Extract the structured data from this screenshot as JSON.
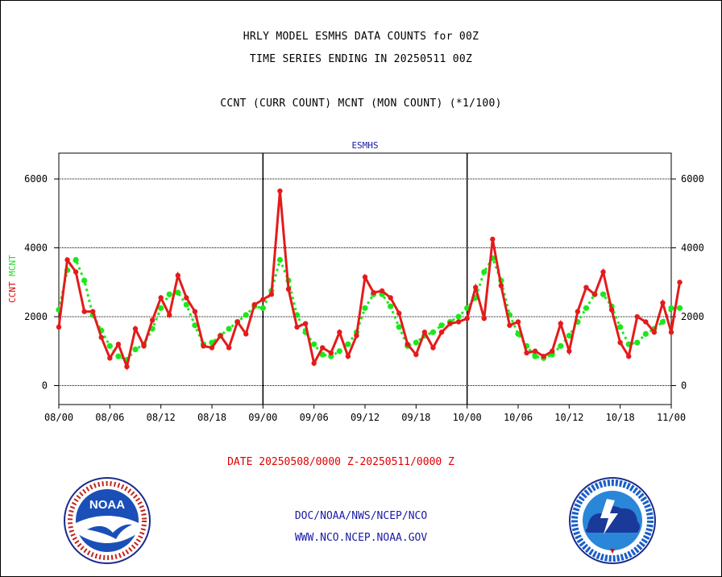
{
  "header": {
    "line1": "HRLY MODEL ESMHS DATA COUNTS for 00Z",
    "line2": "TIME SERIES ENDING IN 20250511 00Z",
    "line3": "CCNT (CURR COUNT) MCNT (MON COUNT) (*1/100)"
  },
  "footer": {
    "date_range": "DATE 20250508/0000 Z-20250511/0000 Z",
    "org": "DOC/NOAA/NWS/NCEP/NCO",
    "url": "WWW.NCO.NCEP.NOAA.GOV"
  },
  "logos": {
    "left": {
      "icon": "noaa-logo-icon",
      "text": "NOAA"
    },
    "right": {
      "icon": "nws-logo-icon"
    }
  },
  "chart_data": {
    "type": "line",
    "title": "ESMHS",
    "ylabel_parts": [
      {
        "text": "CCNT",
        "color": "#e00000"
      },
      {
        "text": "MCNT",
        "color": "#22dd22"
      }
    ],
    "xlim": [
      0,
      72
    ],
    "ylim": [
      -550,
      6750
    ],
    "yticks": [
      0,
      2000,
      4000,
      6000
    ],
    "xticks": [
      {
        "x": 0,
        "label": "08/00"
      },
      {
        "x": 6,
        "label": "08/06"
      },
      {
        "x": 12,
        "label": "08/12"
      },
      {
        "x": 18,
        "label": "08/18"
      },
      {
        "x": 24,
        "label": "09/00"
      },
      {
        "x": 30,
        "label": "09/06"
      },
      {
        "x": 36,
        "label": "09/12"
      },
      {
        "x": 42,
        "label": "09/18"
      },
      {
        "x": 48,
        "label": "10/00"
      },
      {
        "x": 54,
        "label": "10/06"
      },
      {
        "x": 60,
        "label": "10/12"
      },
      {
        "x": 66,
        "label": "10/18"
      },
      {
        "x": 72,
        "label": "11/00"
      }
    ],
    "day_dividers": [
      24,
      48
    ],
    "grid": true,
    "series": [
      {
        "name": "CCNT",
        "color": "#e41b1b",
        "style": "line-markers",
        "values": [
          1700,
          3650,
          3300,
          2150,
          2150,
          1400,
          800,
          1200,
          550,
          1650,
          1150,
          1900,
          2550,
          2050,
          3200,
          2550,
          2150,
          1150,
          1100,
          1450,
          1100,
          1850,
          1500,
          2350,
          2500,
          2650,
          5650,
          2800,
          1700,
          1800,
          650,
          1100,
          950,
          1550,
          850,
          1450,
          3150,
          2700,
          2750,
          2550,
          2100,
          1200,
          900,
          1550,
          1100,
          1550,
          1800,
          1850,
          1950,
          2850,
          1950,
          4250,
          2900,
          1750,
          1850,
          950,
          1000,
          850,
          1000,
          1800,
          1000,
          2150,
          2850,
          2650,
          3300,
          2200,
          1250,
          850,
          2000,
          1850,
          1550,
          2400,
          1550,
          3000
        ]
      },
      {
        "name": "MCNT",
        "color": "#1be81b",
        "style": "dots",
        "values": [
          2200,
          3350,
          3650,
          3050,
          2050,
          1600,
          1150,
          850,
          750,
          1050,
          1200,
          1650,
          2250,
          2650,
          2700,
          2350,
          1750,
          1200,
          1250,
          1450,
          1650,
          1850,
          2050,
          2300,
          2250,
          2750,
          3650,
          3050,
          2050,
          1550,
          1200,
          900,
          850,
          1000,
          1200,
          1550,
          2250,
          2650,
          2650,
          2300,
          1700,
          1150,
          1250,
          1450,
          1550,
          1750,
          1850,
          2000,
          2250,
          2550,
          3300,
          3700,
          3050,
          2050,
          1500,
          1150,
          850,
          800,
          900,
          1150,
          1450,
          1850,
          2250,
          2650,
          2650,
          2300,
          1700,
          1200,
          1250,
          1500,
          1650,
          1850,
          2250,
          2250
        ]
      }
    ]
  }
}
